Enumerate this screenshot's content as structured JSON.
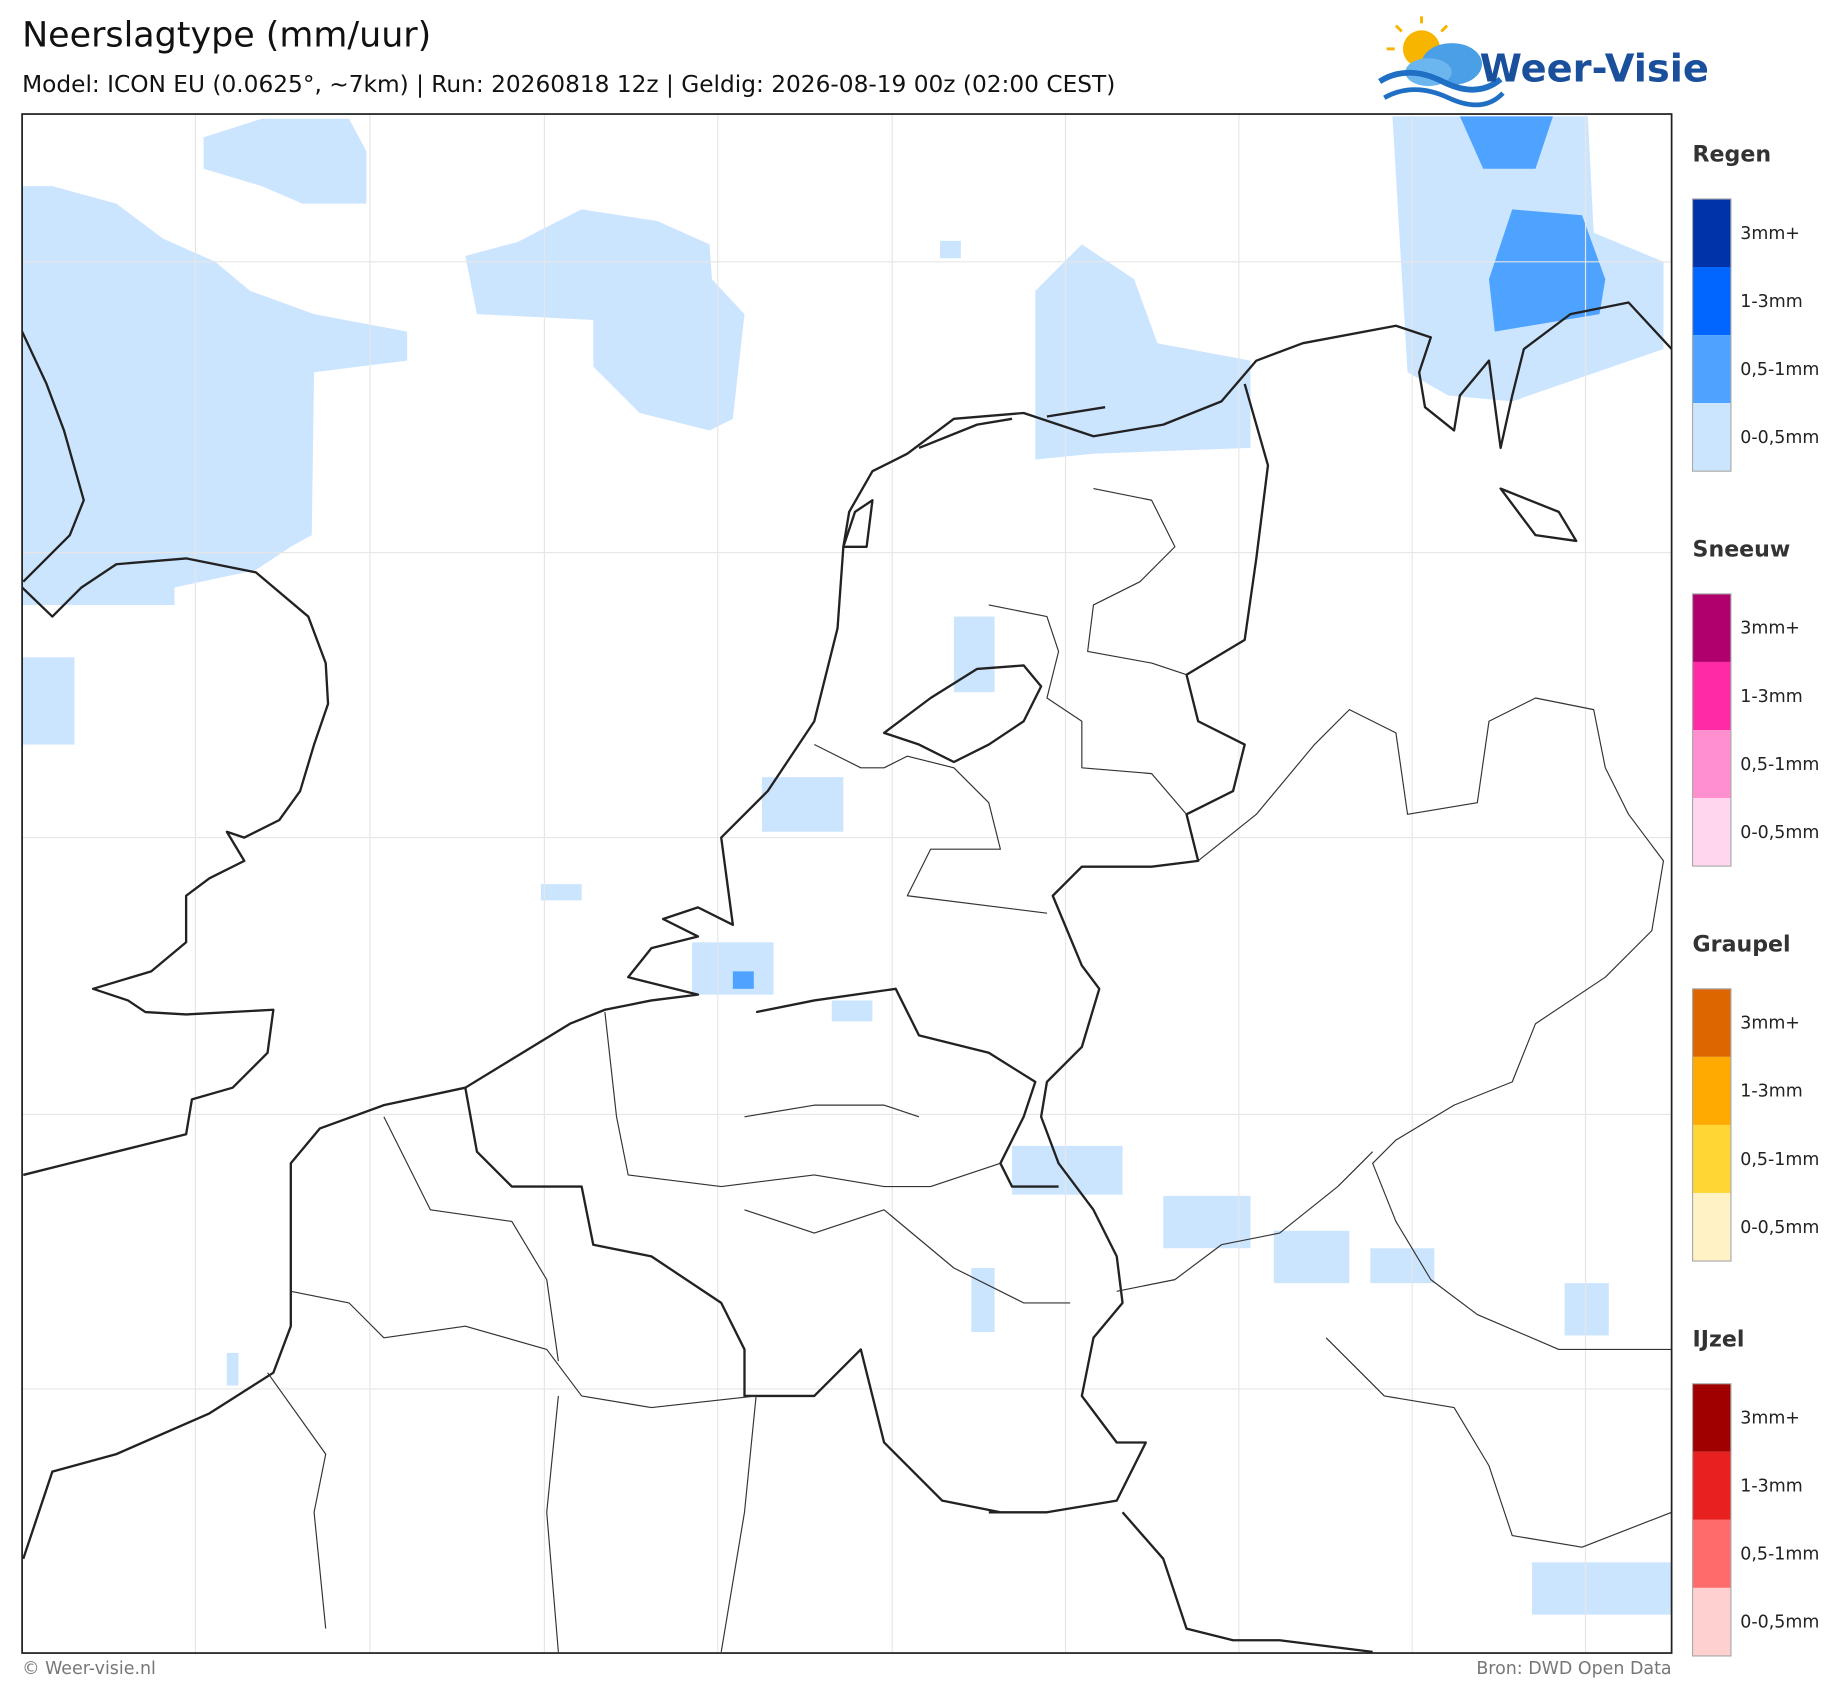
{
  "header": {
    "title": "Neerslagtype (mm/uur)",
    "subtitle": "Model: ICON EU (0.0625°, ~7km)  |  Run: 20260818 12z  |  Geldig: 2026-08-19 00z (02:00 CEST)"
  },
  "logo": {
    "text": "Weer-Visie"
  },
  "legend": {
    "groups": [
      {
        "title": "Regen",
        "items": [
          {
            "label": "3mm+",
            "color": "#0033aa"
          },
          {
            "label": "1-3mm",
            "color": "#0066ff"
          },
          {
            "label": "0,5-1mm",
            "color": "#4da3ff"
          },
          {
            "label": "0-0,5mm",
            "color": "#cce5ff"
          }
        ]
      },
      {
        "title": "Sneeuw",
        "items": [
          {
            "label": "3mm+",
            "color": "#b0006e"
          },
          {
            "label": "1-3mm",
            "color": "#ff2aa6"
          },
          {
            "label": "0,5-1mm",
            "color": "#ff8fcf"
          },
          {
            "label": "0-0,5mm",
            "color": "#ffd6ee"
          }
        ]
      },
      {
        "title": "Graupel",
        "items": [
          {
            "label": "3mm+",
            "color": "#dd6600"
          },
          {
            "label": "1-3mm",
            "color": "#ffaa00"
          },
          {
            "label": "0,5-1mm",
            "color": "#ffd633"
          },
          {
            "label": "0-0,5mm",
            "color": "#fff2c4"
          }
        ]
      },
      {
        "title": "IJzel",
        "items": [
          {
            "label": "3mm+",
            "color": "#a00000"
          },
          {
            "label": "1-3mm",
            "color": "#e82020"
          },
          {
            "label": "0,5-1mm",
            "color": "#ff6b6b"
          },
          {
            "label": "0-0,5mm",
            "color": "#ffd0d0"
          }
        ]
      }
    ]
  },
  "footer": {
    "left": "© Weer-visie.nl",
    "right": "Bron: DWD Open Data"
  }
}
